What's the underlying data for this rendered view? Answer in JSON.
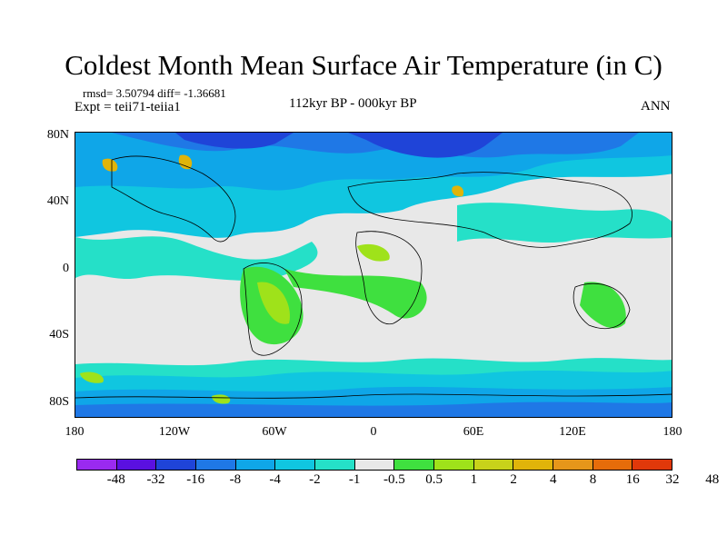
{
  "title": "Coldest Month Mean Surface Air Temperature (in C)",
  "stats": "rmsd= 3.50794 diff= -1.36681",
  "expt": "Expt = teii71-teiia1",
  "subtitle": "112kyr BP - 000kyr BP",
  "season": "ANN",
  "lat_labels": [
    "80N",
    "40N",
    "0",
    "40S",
    "80S"
  ],
  "lon_labels": [
    "180",
    "120W",
    "60W",
    "0",
    "60E",
    "120E",
    "180"
  ],
  "colorbar": {
    "labels": [
      "-48",
      "-32",
      "-16",
      "-8",
      "-4",
      "-2",
      "-1",
      "-0.5",
      "0.5",
      "1",
      "2",
      "4",
      "8",
      "16",
      "32",
      "48"
    ],
    "colors": [
      "#9a2af0",
      "#5a10e0",
      "#1f44d8",
      "#1f78e6",
      "#0fa6e8",
      "#10c6e0",
      "#25e0c8",
      "#e8e8e8",
      "#3fe03f",
      "#9fe21a",
      "#c8d21a",
      "#e0b40a",
      "#e6961a",
      "#e66c0a",
      "#e0380a"
    ]
  },
  "legend_colors": {
    "cold1": "#1f44d8",
    "cold2": "#1f78e6",
    "cool": "#0fa6e8",
    "cool2": "#10c6e0",
    "mild": "#25e0c8",
    "neutral": "#e8e8e8",
    "warm1": "#3fe03f",
    "warm2": "#9fe21a",
    "warm3": "#c8d21a",
    "warm4": "#e0b40a"
  }
}
